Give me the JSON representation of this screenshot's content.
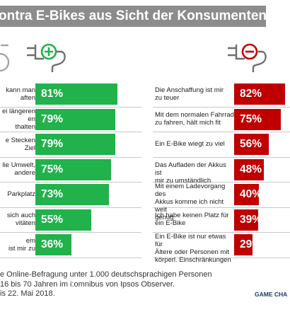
{
  "title": "ontra E-Bikes aus Sicht der Konsumenten",
  "icons": {
    "pro": "ebike-plug-plus-icon",
    "contra": "ebike-plug-minus-icon",
    "bike": "bicycle-wheel-icon"
  },
  "colors": {
    "pro": "#21b24b",
    "contra": "#c00000",
    "title_bg": "#8c8c8c"
  },
  "chart_data": [
    {
      "type": "bar",
      "series": [
        {
          "values": [
            81,
            79,
            79,
            75,
            73,
            55,
            36
          ]
        }
      ],
      "categories": [
        "kann man\naften",
        "ei längeren\nen\nthalten",
        "e Stecken\nZiel",
        "lie Umwelt,\nandere",
        "Parkplatz",
        "sich auch\nvitäten",
        "em\nist mir zu"
      ],
      "values": [
        81,
        79,
        79,
        75,
        73,
        55,
        36
      ],
      "value_labels": [
        "81%",
        "79%",
        "79%",
        "75%",
        "73%",
        "55%",
        "36%"
      ],
      "unit": "%"
    },
    {
      "type": "bar",
      "series": [
        {
          "values": [
            82,
            75,
            56,
            48,
            40,
            39,
            29
          ]
        }
      ],
      "categories": [
        "Die Anschaffung ist mir\nzu teuer",
        "Mit dem normalen Fahrrad\nzu fahren, hält mich fit",
        "Ein E-Bike wiegt zu viel",
        "Das Aufladen der Akkus ist\nmir zu umständlich",
        "Mit einem Ladevorgang des\nAkkus komme ich nicht weit\ngenug",
        "Ich habe keinen Platz für\nein E-Bike",
        "Ein E-Bike ist nur etwas für\nÄltere oder Personen mit\nkörperl. Einschränkungen"
      ],
      "values": [
        82,
        75,
        56,
        48,
        40,
        39,
        29
      ],
      "value_labels": [
        "82%",
        "75%",
        "56%",
        "48%",
        "40%",
        "39%",
        "29%"
      ],
      "unit": "%"
    }
  ],
  "footnote": "e Online-Befragung unter 1.000 deutschsprachigen Personen\n16 bis 70 Jahren im i:omnibus von Ipsos Observer.\nis 22. Mai 2018.",
  "brand": "GAME CHA"
}
